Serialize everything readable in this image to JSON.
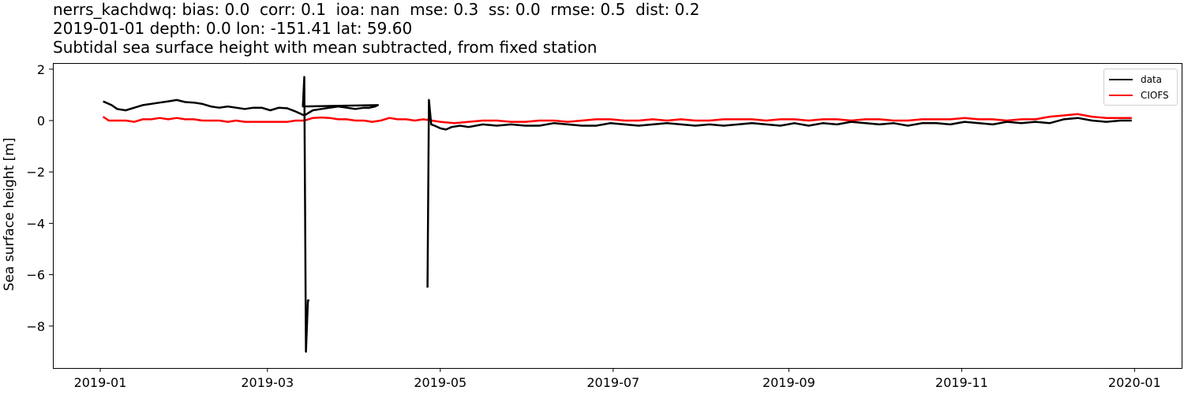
{
  "chart_data": {
    "type": "line",
    "title": [
      "nerrs_kachdwq: bias: 0.0  corr: 0.1  ioa: nan  mse: 0.3  ss: 0.0  rmse: 0.5  dist: 0.2",
      "2019-01-01 depth: 0.0 lon: -151.41 lat: 59.60",
      "Subtidal sea surface height with mean subtracted, from fixed station"
    ],
    "xlabel": "",
    "ylabel": "Sea surface height [m]",
    "xticks": [
      "2019-01",
      "2019-03",
      "2019-05",
      "2019-07",
      "2019-09",
      "2019-11",
      "2020-01"
    ],
    "xtick_days": [
      0,
      59,
      120,
      181,
      243,
      304,
      365
    ],
    "yticks": [
      2,
      0,
      -2,
      -4,
      -6,
      -8
    ],
    "ylim": [
      -9.6,
      2.2
    ],
    "xlim_days": [
      -17,
      381
    ],
    "grid": false,
    "legend_position": "upper right",
    "series": [
      {
        "name": "data",
        "color": "#000000",
        "segments": [
          {
            "days": [
              1,
              2,
              4,
              6,
              9,
              12,
              15,
              18,
              21,
              24,
              27,
              30,
              33,
              36,
              39,
              42,
              45,
              48,
              51,
              54,
              57,
              60,
              63,
              66,
              69,
              72,
              75,
              78,
              81,
              84,
              87,
              90,
              93,
              95,
              97,
              98,
              71.5,
              72,
              72.6,
              73.3,
              73.8
            ],
            "values": [
              0.75,
              0.7,
              0.6,
              0.45,
              0.4,
              0.5,
              0.6,
              0.65,
              0.7,
              0.75,
              0.8,
              0.72,
              0.7,
              0.65,
              0.55,
              0.5,
              0.55,
              0.5,
              0.45,
              0.5,
              0.5,
              0.4,
              0.5,
              0.48,
              0.35,
              0.2,
              0.4,
              0.45,
              0.5,
              0.55,
              0.5,
              0.45,
              0.5,
              0.5,
              0.55,
              0.6,
              0.55,
              1.7,
              -9.0,
              -7.0,
              -7.0
            ]
          },
          {
            "days": [
              115.5,
              116,
              116.8,
              118,
              120,
              122,
              124,
              127,
              130,
              135,
              140,
              145,
              150,
              155,
              160,
              165,
              170,
              175,
              180,
              185,
              190,
              195,
              200,
              205,
              210,
              215,
              220,
              225,
              230,
              235,
              240,
              245,
              250,
              255,
              260,
              265,
              270,
              275,
              280,
              285,
              290,
              295,
              300,
              305,
              310,
              315,
              320,
              325,
              330,
              335,
              340,
              345,
              350,
              355,
              360,
              364
            ],
            "values": [
              -6.5,
              0.8,
              -0.15,
              -0.2,
              -0.3,
              -0.35,
              -0.25,
              -0.2,
              -0.25,
              -0.15,
              -0.2,
              -0.15,
              -0.2,
              -0.2,
              -0.1,
              -0.15,
              -0.2,
              -0.2,
              -0.1,
              -0.15,
              -0.2,
              -0.15,
              -0.1,
              -0.15,
              -0.2,
              -0.15,
              -0.2,
              -0.15,
              -0.1,
              -0.15,
              -0.2,
              -0.1,
              -0.2,
              -0.1,
              -0.15,
              -0.05,
              -0.1,
              -0.15,
              -0.1,
              -0.2,
              -0.1,
              -0.1,
              -0.15,
              -0.05,
              -0.1,
              -0.15,
              -0.05,
              -0.1,
              -0.05,
              -0.1,
              0.05,
              0.1,
              0.0,
              -0.05,
              0.0,
              0.0
            ]
          }
        ]
      },
      {
        "name": "CIOFS",
        "color": "#ff0000",
        "segments": [
          {
            "days": [
              1,
              3,
              6,
              9,
              12,
              15,
              18,
              21,
              24,
              27,
              30,
              33,
              36,
              39,
              42,
              45,
              48,
              51,
              54,
              57,
              60,
              63,
              66,
              69,
              72,
              75,
              78,
              81,
              84,
              87,
              90,
              93,
              96,
              99,
              102,
              105,
              108,
              111,
              114,
              117,
              120,
              125,
              130,
              135,
              140,
              145,
              150,
              155,
              160,
              165,
              170,
              175,
              180,
              185,
              190,
              195,
              200,
              205,
              210,
              215,
              220,
              225,
              230,
              235,
              240,
              245,
              250,
              255,
              260,
              265,
              270,
              275,
              280,
              285,
              290,
              295,
              300,
              305,
              310,
              315,
              320,
              325,
              330,
              335,
              340,
              345,
              350,
              355,
              360,
              364
            ],
            "values": [
              0.15,
              0.0,
              0.0,
              0.0,
              -0.05,
              0.05,
              0.05,
              0.1,
              0.05,
              0.1,
              0.05,
              0.05,
              0.0,
              0.0,
              0.0,
              -0.05,
              0.0,
              -0.05,
              -0.05,
              -0.05,
              -0.05,
              -0.05,
              -0.05,
              0.0,
              0.0,
              0.1,
              0.12,
              0.1,
              0.05,
              0.05,
              0.0,
              0.0,
              -0.05,
              0.0,
              0.1,
              0.05,
              0.05,
              0.0,
              0.05,
              0.0,
              -0.05,
              -0.1,
              -0.05,
              0.0,
              0.0,
              -0.05,
              -0.05,
              0.0,
              0.0,
              -0.05,
              0.0,
              0.05,
              0.05,
              0.0,
              0.0,
              0.05,
              0.0,
              0.05,
              0.0,
              0.0,
              0.05,
              0.05,
              0.05,
              0.0,
              0.05,
              0.05,
              0.0,
              0.05,
              0.05,
              0.0,
              0.05,
              0.05,
              0.0,
              0.0,
              0.05,
              0.05,
              0.05,
              0.1,
              0.05,
              0.05,
              0.0,
              0.05,
              0.05,
              0.15,
              0.2,
              0.25,
              0.15,
              0.1,
              0.1,
              0.1
            ]
          }
        ]
      }
    ]
  }
}
